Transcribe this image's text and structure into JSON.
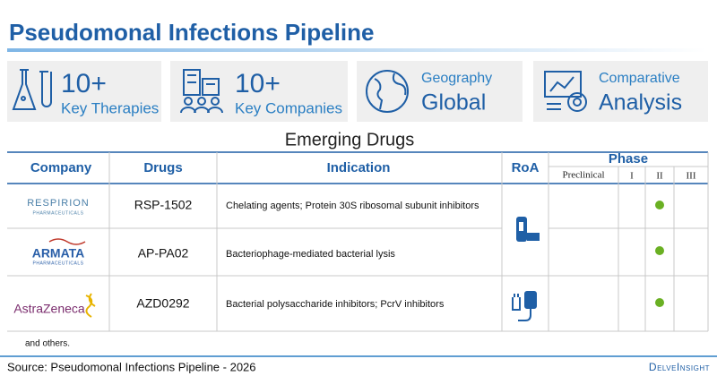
{
  "title": "Pseudomonal Infections Pipeline",
  "stats": [
    {
      "top": "10+",
      "bottom": "Key Therapies"
    },
    {
      "top": "10+",
      "bottom": "Key Companies"
    },
    {
      "top": "Geography",
      "bottom": "Global"
    },
    {
      "top": "Comparative",
      "bottom": "Analysis"
    }
  ],
  "section_title": "Emerging Drugs",
  "table": {
    "headers": [
      "Company",
      "Drugs",
      "Indication",
      "RoA"
    ],
    "phase_header": "Phase",
    "phases": [
      "Preclinical",
      "I",
      "II",
      "III"
    ],
    "rows": [
      {
        "company": "RESPIRION",
        "company_sub": "PHARMACEUTICALS",
        "drug": "RSP-1502",
        "indication": "Chelating agents; Protein 30S ribosomal subunit inhibitors"
      },
      {
        "company": "ARMATA",
        "company_sub": "PHARMACEUTICALS",
        "drug": "AP-PA02",
        "indication": "Bacteriophage-mediated bacterial lysis"
      },
      {
        "company": "AstraZeneca",
        "drug": "AZD0292",
        "indication": "Bacterial polysaccharide inhibitors; PcrV inhibitors"
      }
    ]
  },
  "footnote": "and others.",
  "source": "Source: Pseudomonal Infections Pipeline - 2026",
  "brand": "DelveInsight"
}
